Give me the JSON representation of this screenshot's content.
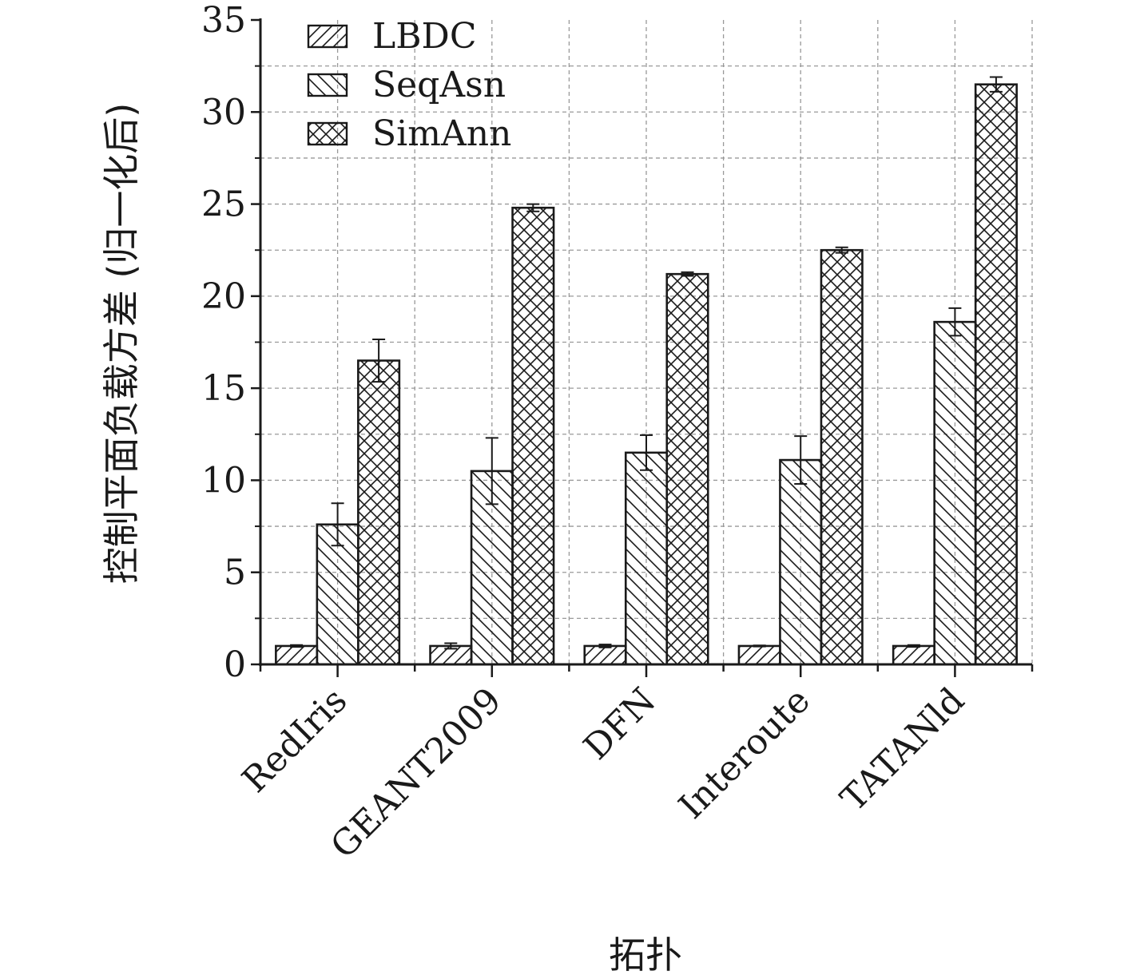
{
  "chart_data": {
    "type": "bar",
    "categories": [
      "RedIris",
      "GEANT2009",
      "DFN",
      "Interoute",
      "TATANld"
    ],
    "series": [
      {
        "name": "LBDC",
        "values": [
          1.0,
          1.0,
          1.0,
          1.0,
          1.0
        ],
        "errors": [
          0.05,
          0.15,
          0.08,
          0.03,
          0.05
        ],
        "pattern": "diag-right"
      },
      {
        "name": "SeqAsn",
        "values": [
          7.6,
          10.5,
          11.5,
          11.1,
          18.6
        ],
        "errors": [
          1.15,
          1.8,
          0.95,
          1.3,
          0.75
        ],
        "pattern": "diag-left"
      },
      {
        "name": "SimAnn",
        "values": [
          16.5,
          24.8,
          21.2,
          22.5,
          31.5
        ],
        "errors": [
          1.15,
          0.2,
          0.1,
          0.15,
          0.4
        ],
        "pattern": "crosshatch"
      }
    ],
    "ylabel": "控制平面负载方差 (归一化后)",
    "xlabel": "拓扑",
    "ylim": [
      0,
      35
    ],
    "yticks": [
      "0",
      "5",
      "10",
      "15",
      "20",
      "25",
      "30",
      "35"
    ],
    "grid": true,
    "legend_position": "top-left"
  },
  "colors": {
    "bar_fill": "#ffffff",
    "bar_stroke": "#1a1a1a",
    "grid": "#999999"
  }
}
